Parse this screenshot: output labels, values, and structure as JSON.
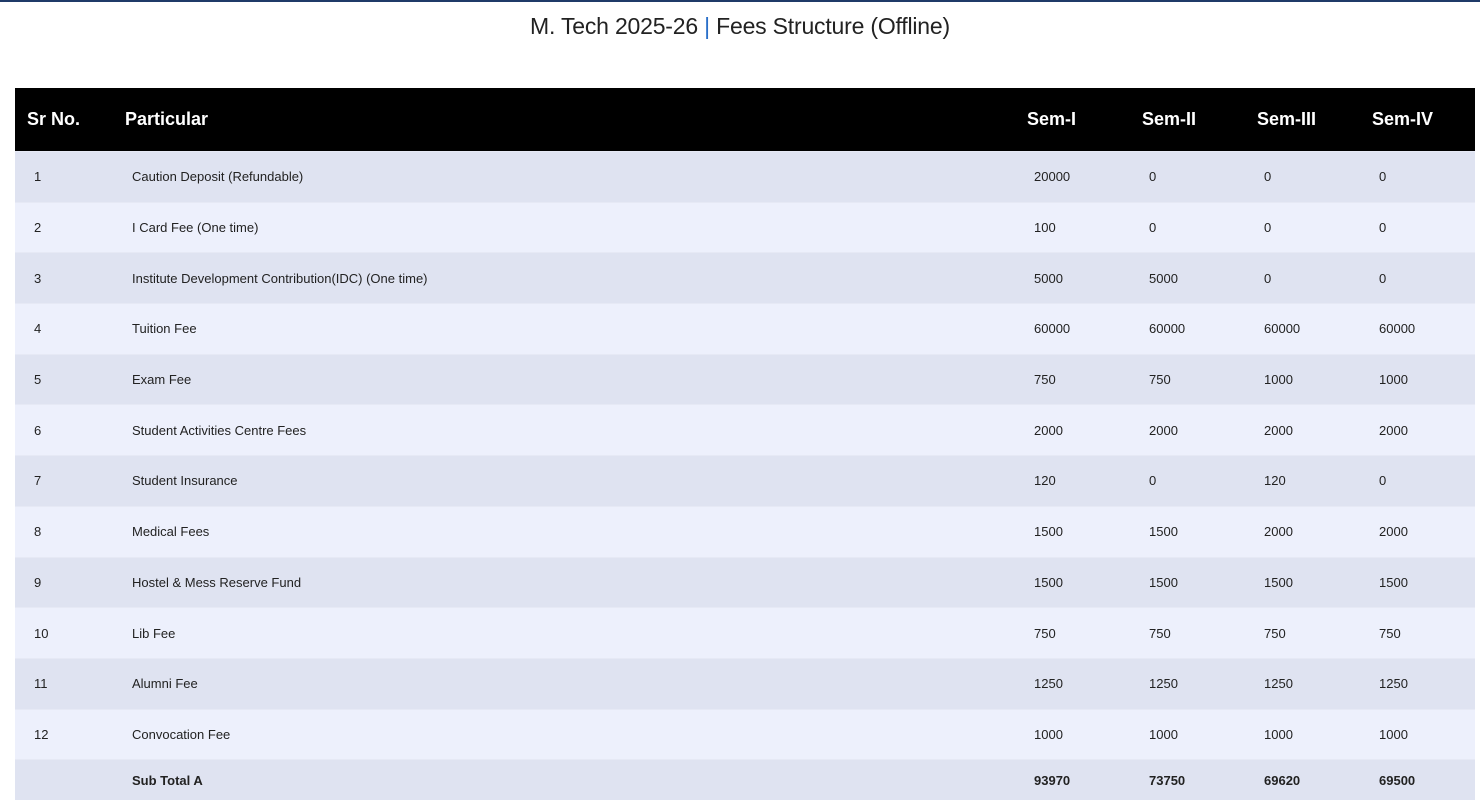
{
  "title": {
    "left": "M. Tech 2025-26",
    "separator": "|",
    "right": "Fees Structure (Offline)"
  },
  "columns": [
    "Sr No.",
    "Particular",
    "Sem-I",
    "Sem-II",
    "Sem-III",
    "Sem-IV"
  ],
  "rows": [
    [
      "1",
      "Caution Deposit (Refundable)",
      "20000",
      "0",
      "0",
      "0"
    ],
    [
      "2",
      "I Card Fee (One time)",
      "100",
      "0",
      "0",
      "0"
    ],
    [
      "3",
      "Institute Development Contribution(IDC) (One time)",
      "5000",
      "5000",
      "0",
      "0"
    ],
    [
      "4",
      "Tuition Fee",
      "60000",
      "60000",
      "60000",
      "60000"
    ],
    [
      "5",
      "Exam Fee",
      "750",
      "750",
      "1000",
      "1000"
    ],
    [
      "6",
      "Student Activities Centre Fees",
      "2000",
      "2000",
      "2000",
      "2000"
    ],
    [
      "7",
      "Student Insurance",
      "120",
      "0",
      "120",
      "0"
    ],
    [
      "8",
      "Medical Fees",
      "1500",
      "1500",
      "2000",
      "2000"
    ],
    [
      "9",
      "Hostel & Mess Reserve Fund",
      "1500",
      "1500",
      "1500",
      "1500"
    ],
    [
      "10",
      "Lib Fee",
      "750",
      "750",
      "750",
      "750"
    ],
    [
      "11",
      "Alumni Fee",
      "1250",
      "1250",
      "1250",
      "1250"
    ],
    [
      "12",
      "Convocation Fee",
      "1000",
      "1000",
      "1000",
      "1000"
    ]
  ],
  "subtotal": [
    "",
    "Sub Total A",
    "93970",
    "73750",
    "69620",
    "69500"
  ]
}
